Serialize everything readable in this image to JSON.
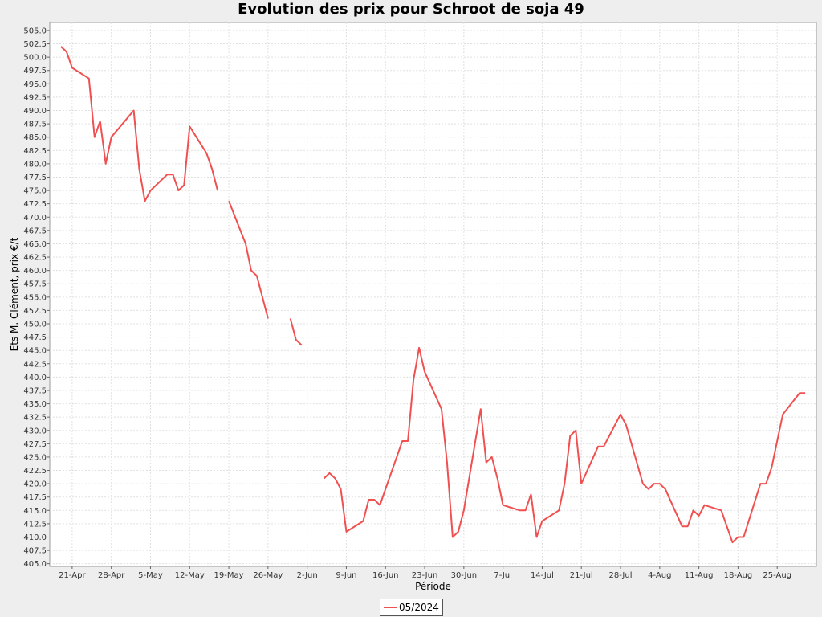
{
  "chart_data": {
    "type": "line",
    "title": "Evolution des prix pour Schroot de soja 49",
    "xlabel": "Période",
    "ylabel": "Ets M. Clément, prix €/t",
    "ylim": [
      404.5,
      506.5
    ],
    "y_ticks": [
      "405.0",
      "407.5",
      "410.0",
      "412.5",
      "415.0",
      "417.5",
      "420.0",
      "422.5",
      "425.0",
      "427.5",
      "430.0",
      "432.5",
      "435.0",
      "437.5",
      "440.0",
      "442.5",
      "445.0",
      "447.5",
      "450.0",
      "452.5",
      "455.0",
      "457.5",
      "460.0",
      "462.5",
      "465.0",
      "467.5",
      "470.0",
      "472.5",
      "475.0",
      "477.5",
      "480.0",
      "482.5",
      "485.0",
      "487.5",
      "490.0",
      "492.5",
      "495.0",
      "497.5",
      "500.0",
      "502.5",
      "505.0"
    ],
    "x_ticks": [
      "21-Apr",
      "28-Apr",
      "5-May",
      "12-May",
      "19-May",
      "26-May",
      "2-Jun",
      "9-Jun",
      "16-Jun",
      "23-Jun",
      "30-Jun",
      "7-Jul",
      "14-Jul",
      "21-Jul",
      "28-Jul",
      "4-Aug",
      "11-Aug",
      "18-Aug",
      "25-Aug"
    ],
    "grid": true,
    "legend_position": "bottom-center",
    "series": [
      {
        "name": "05/2024",
        "color": "#f05050",
        "segments": [
          [
            [
              "19-Apr",
              502
            ],
            [
              "20-Apr",
              501
            ],
            [
              "21-Apr",
              498
            ],
            [
              "24-Apr",
              496
            ],
            [
              "25-Apr",
              485
            ],
            [
              "26-Apr",
              488
            ],
            [
              "27-Apr",
              480
            ],
            [
              "28-Apr",
              485
            ],
            [
              "2-May",
              490
            ],
            [
              "3-May",
              479
            ],
            [
              "4-May",
              473
            ],
            [
              "5-May",
              475
            ],
            [
              "8-May",
              478
            ],
            [
              "9-May",
              478
            ],
            [
              "10-May",
              475
            ],
            [
              "11-May",
              476
            ],
            [
              "12-May",
              487
            ],
            [
              "15-May",
              482
            ],
            [
              "16-May",
              479
            ],
            [
              "17-May",
              475
            ]
          ],
          [
            [
              "19-May",
              473
            ],
            [
              "22-May",
              465
            ],
            [
              "23-May",
              460
            ],
            [
              "24-May",
              459
            ],
            [
              "26-May",
              451
            ]
          ],
          [
            [
              "30-May",
              451
            ],
            [
              "31-May",
              447
            ],
            [
              "1-Jun",
              446
            ]
          ],
          [
            [
              "5-Jun",
              421
            ],
            [
              "6-Jun",
              422
            ],
            [
              "7-Jun",
              421
            ],
            [
              "8-Jun",
              419
            ],
            [
              "9-Jun",
              411
            ],
            [
              "12-Jun",
              413
            ],
            [
              "13-Jun",
              417
            ],
            [
              "14-Jun",
              417
            ],
            [
              "15-Jun",
              416
            ],
            [
              "16-Jun",
              419
            ],
            [
              "19-Jun",
              428
            ],
            [
              "20-Jun",
              428
            ],
            [
              "21-Jun",
              439.5
            ],
            [
              "22-Jun",
              445.5
            ],
            [
              "23-Jun",
              441
            ],
            [
              "26-Jun",
              434
            ],
            [
              "27-Jun",
              424
            ],
            [
              "28-Jun",
              410
            ],
            [
              "29-Jun",
              411
            ],
            [
              "30-Jun",
              415
            ],
            [
              "3-Jul",
              434
            ],
            [
              "4-Jul",
              424
            ],
            [
              "5-Jul",
              425
            ],
            [
              "6-Jul",
              421
            ],
            [
              "7-Jul",
              416
            ],
            [
              "10-Jul",
              415
            ],
            [
              "11-Jul",
              415
            ],
            [
              "12-Jul",
              418
            ],
            [
              "13-Jul",
              410
            ],
            [
              "14-Jul",
              413
            ],
            [
              "17-Jul",
              415
            ],
            [
              "18-Jul",
              420
            ],
            [
              "19-Jul",
              429
            ],
            [
              "20-Jul",
              430
            ],
            [
              "21-Jul",
              420
            ],
            [
              "24-Jul",
              427
            ],
            [
              "25-Jul",
              427
            ],
            [
              "28-Jul",
              433
            ],
            [
              "29-Jul",
              431
            ],
            [
              "1-Aug",
              420
            ],
            [
              "2-Aug",
              419
            ],
            [
              "3-Aug",
              420
            ],
            [
              "4-Aug",
              420
            ],
            [
              "5-Aug",
              419
            ],
            [
              "8-Aug",
              412
            ],
            [
              "9-Aug",
              412
            ],
            [
              "10-Aug",
              415
            ],
            [
              "11-Aug",
              414
            ],
            [
              "12-Aug",
              416
            ],
            [
              "15-Aug",
              415
            ],
            [
              "17-Aug",
              409
            ],
            [
              "18-Aug",
              410
            ],
            [
              "19-Aug",
              410
            ],
            [
              "22-Aug",
              420
            ],
            [
              "23-Aug",
              420
            ],
            [
              "24-Aug",
              423
            ],
            [
              "25-Aug",
              428
            ],
            [
              "26-Aug",
              433
            ],
            [
              "29-Aug",
              437
            ],
            [
              "30-Aug",
              437
            ]
          ]
        ]
      }
    ]
  }
}
